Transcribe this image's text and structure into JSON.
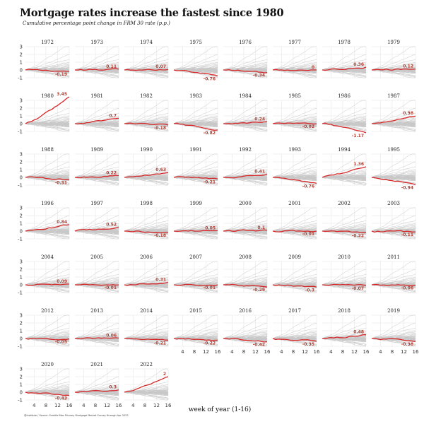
{
  "title": "Mortgage rates increase the fastest since 1980",
  "subtitle": "Cumulative percentage point change in FRM 30 rate (p.p.)",
  "caption": "@Institute / Source: Freddie Mac Primary Mortgage Market Survey through Apr 2022",
  "colors": {
    "highlight": "#d62728",
    "background_lines": "#c8c8c8",
    "grid": "#e6e6e6"
  },
  "chart_data": {
    "type": "line",
    "layout": "small-multiples",
    "xlabel": "week of year (1-16)",
    "ylabel": "",
    "xlim": [
      1,
      16
    ],
    "ylim": [
      -1,
      3
    ],
    "x_ticks": [
      4,
      8,
      12,
      16
    ],
    "y_ticks": [
      -1,
      0,
      1,
      2,
      3
    ],
    "grid": true,
    "panels": [
      {
        "year": "1972",
        "final_change": -0.19,
        "final_label": "-0.19"
      },
      {
        "year": "1973",
        "final_change": 0.11,
        "final_label": "0.11"
      },
      {
        "year": "1974",
        "final_change": 0.07,
        "final_label": "0.07"
      },
      {
        "year": "1975",
        "final_change": -0.76,
        "final_label": "-0.76"
      },
      {
        "year": "1976",
        "final_change": -0.34,
        "final_label": "-0.34"
      },
      {
        "year": "1977",
        "final_change": 0,
        "final_label": "0"
      },
      {
        "year": "1978",
        "final_change": 0.36,
        "final_label": "0.36"
      },
      {
        "year": "1979",
        "final_change": 0.12,
        "final_label": "0.12"
      },
      {
        "year": "1980",
        "final_change": 3.45,
        "final_label": "3.45"
      },
      {
        "year": "1981",
        "final_change": 0.7,
        "final_label": "0.7"
      },
      {
        "year": "1982",
        "final_change": -0.18,
        "final_label": "-0.18"
      },
      {
        "year": "1983",
        "final_change": -0.82,
        "final_label": "-0.82"
      },
      {
        "year": "1984",
        "final_change": 0.24,
        "final_label": "0.24"
      },
      {
        "year": "1985",
        "final_change": -0.02,
        "final_label": "-0.02"
      },
      {
        "year": "1986",
        "final_change": -1.17,
        "final_label": "-1.17"
      },
      {
        "year": "1987",
        "final_change": 0.98,
        "final_label": "0.98"
      },
      {
        "year": "1988",
        "final_change": -0.31,
        "final_label": "-0.31"
      },
      {
        "year": "1989",
        "final_change": 0.22,
        "final_label": "0.22"
      },
      {
        "year": "1990",
        "final_change": 0.63,
        "final_label": "0.63"
      },
      {
        "year": "1991",
        "final_change": -0.21,
        "final_label": "-0.21"
      },
      {
        "year": "1992",
        "final_change": 0.41,
        "final_label": "0.41"
      },
      {
        "year": "1993",
        "final_change": -0.76,
        "final_label": "-0.76"
      },
      {
        "year": "1994",
        "final_change": 1.36,
        "final_label": "1.36"
      },
      {
        "year": "1995",
        "final_change": -0.94,
        "final_label": "-0.94"
      },
      {
        "year": "1996",
        "final_change": 0.84,
        "final_label": "0.84"
      },
      {
        "year": "1997",
        "final_change": 0.52,
        "final_label": "0.52"
      },
      {
        "year": "1998",
        "final_change": -0.18,
        "final_label": "-0.18"
      },
      {
        "year": "1999",
        "final_change": 0.05,
        "final_label": "0.05"
      },
      {
        "year": "2000",
        "final_change": 0.1,
        "final_label": "0.1"
      },
      {
        "year": "2001",
        "final_change": -0.01,
        "final_label": "-0.01"
      },
      {
        "year": "2002",
        "final_change": -0.22,
        "final_label": "-0.22"
      },
      {
        "year": "2003",
        "final_change": -0.11,
        "final_label": "-0.11"
      },
      {
        "year": "2004",
        "final_change": 0.09,
        "final_label": "0.09"
      },
      {
        "year": "2005",
        "final_change": -0.01,
        "final_label": "-0.01"
      },
      {
        "year": "2006",
        "final_change": 0.31,
        "final_label": "0.31"
      },
      {
        "year": "2007",
        "final_change": -0.01,
        "final_label": "-0.01"
      },
      {
        "year": "2008",
        "final_change": -0.29,
        "final_label": "-0.29"
      },
      {
        "year": "2009",
        "final_change": -0.3,
        "final_label": "-0.3"
      },
      {
        "year": "2010",
        "final_change": -0.07,
        "final_label": "-0.07"
      },
      {
        "year": "2011",
        "final_change": -0.06,
        "final_label": "-0.06"
      },
      {
        "year": "2012",
        "final_change": -0.05,
        "final_label": "-0.05"
      },
      {
        "year": "2013",
        "final_change": 0.06,
        "final_label": "0.06"
      },
      {
        "year": "2014",
        "final_change": -0.21,
        "final_label": "-0.21"
      },
      {
        "year": "2015",
        "final_change": -0.22,
        "final_label": "-0.22"
      },
      {
        "year": "2016",
        "final_change": -0.42,
        "final_label": "-0.42"
      },
      {
        "year": "2017",
        "final_change": -0.35,
        "final_label": "-0.35"
      },
      {
        "year": "2018",
        "final_change": 0.48,
        "final_label": "0.48"
      },
      {
        "year": "2019",
        "final_change": -0.38,
        "final_label": "-0.38"
      },
      {
        "year": "2020",
        "final_change": -0.43,
        "final_label": "-0.43"
      },
      {
        "year": "2021",
        "final_change": 0.3,
        "final_label": "0.3"
      },
      {
        "year": "2022",
        "final_change": 2,
        "final_label": "2"
      }
    ]
  }
}
